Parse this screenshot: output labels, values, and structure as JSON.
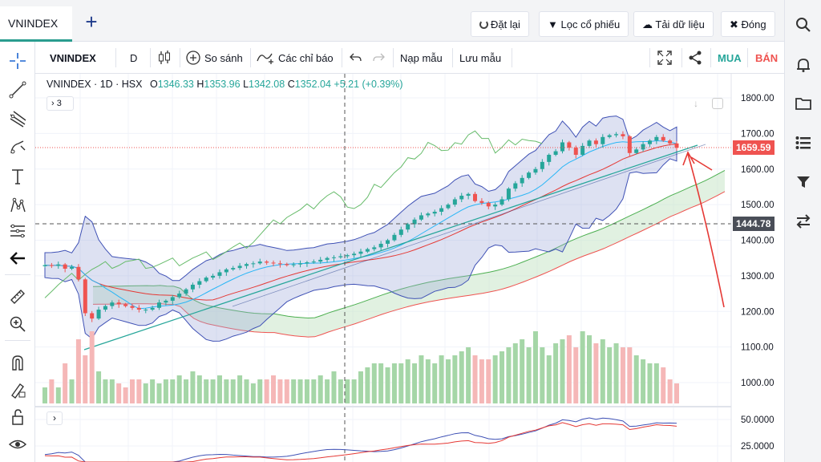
{
  "tabs": {
    "active": "VNINDEX",
    "add": "+"
  },
  "top_actions": {
    "reset": "Đặt lại",
    "filter": "Lọc cổ phiếu",
    "download": "Tải dữ liệu",
    "close": "Đóng"
  },
  "toolbar": {
    "symbol": "VNINDEX",
    "interval": "D",
    "compare": "So sánh",
    "indicators": "Các chỉ báo",
    "load_template": "Nạp mẫu",
    "save_template": "Lưu mẫu",
    "buy": "MUA",
    "sell": "BÁN"
  },
  "legend": {
    "symbol": "VNINDEX",
    "interval": "1D",
    "exchange": "HSX",
    "o_label": "O",
    "open": "1346.33",
    "h_label": "H",
    "high": "1353.96",
    "l_label": "L",
    "low": "1342.08",
    "c_label": "C",
    "close": "1352.04",
    "change": "+5.21 (+0.39%)",
    "collapsed_count": "3"
  },
  "price_axis": {
    "ticks": [
      "1800.00",
      "1700.00",
      "1600.00",
      "1500.00",
      "1400.00",
      "1300.00",
      "1200.00",
      "1100.00",
      "1000.00"
    ],
    "last_price": "1659.59",
    "crosshair_price": "1444.78"
  },
  "oscillator_axis": {
    "ticks": [
      "50.0000",
      "25.0000"
    ]
  },
  "colors": {
    "up": "#26a69a",
    "down": "#ef5350",
    "accent": "#2a9d8f",
    "buy": "#26a69a",
    "sell": "#ef5350"
  },
  "chart_data": {
    "type": "candlestick",
    "title": "VNINDEX · 1D · HSX",
    "ylim": [
      950,
      1850
    ],
    "close": [
      1330,
      1328,
      1332,
      1320,
      1325,
      1290,
      1195,
      1180,
      1205,
      1215,
      1225,
      1220,
      1215,
      1210,
      1205,
      1205,
      1210,
      1225,
      1230,
      1240,
      1250,
      1262,
      1275,
      1285,
      1295,
      1300,
      1310,
      1318,
      1322,
      1328,
      1333,
      1335,
      1340,
      1337,
      1335,
      1333,
      1330,
      1332,
      1335,
      1338,
      1340,
      1345,
      1350,
      1352,
      1355,
      1358,
      1362,
      1368,
      1375,
      1380,
      1390,
      1400,
      1415,
      1430,
      1445,
      1458,
      1470,
      1475,
      1480,
      1490,
      1500,
      1515,
      1525,
      1530,
      1510,
      1505,
      1495,
      1500,
      1515,
      1545,
      1560,
      1575,
      1590,
      1600,
      1620,
      1640,
      1650,
      1675,
      1660,
      1640,
      1665,
      1680,
      1670,
      1690,
      1695,
      1698,
      1692,
      1645,
      1655,
      1670,
      1680,
      1690,
      1680,
      1672,
      1659.59
    ],
    "volume_relative": [
      0.2,
      0.3,
      0.2,
      0.5,
      0.3,
      0.8,
      0.6,
      0.9,
      0.4,
      0.3,
      0.3,
      0.25,
      0.2,
      0.3,
      0.3,
      0.25,
      0.3,
      0.25,
      0.3,
      0.3,
      0.35,
      0.3,
      0.4,
      0.35,
      0.3,
      0.3,
      0.35,
      0.3,
      0.3,
      0.35,
      0.3,
      0.25,
      0.3,
      0.3,
      0.35,
      0.3,
      0.3,
      0.3,
      0.3,
      0.3,
      0.3,
      0.35,
      0.3,
      0.4,
      0.3,
      0.3,
      0.3,
      0.4,
      0.45,
      0.5,
      0.5,
      0.45,
      0.5,
      0.5,
      0.55,
      0.5,
      0.6,
      0.55,
      0.5,
      0.6,
      0.55,
      0.6,
      0.65,
      0.7,
      0.6,
      0.55,
      0.55,
      0.6,
      0.65,
      0.7,
      0.75,
      0.8,
      0.7,
      0.9,
      0.7,
      0.6,
      0.75,
      0.8,
      0.85,
      0.7,
      0.9,
      0.85,
      0.75,
      0.8,
      0.7,
      0.75,
      0.7,
      0.7,
      0.6,
      0.55,
      0.5,
      0.5,
      0.45,
      0.3,
      0.25
    ]
  }
}
